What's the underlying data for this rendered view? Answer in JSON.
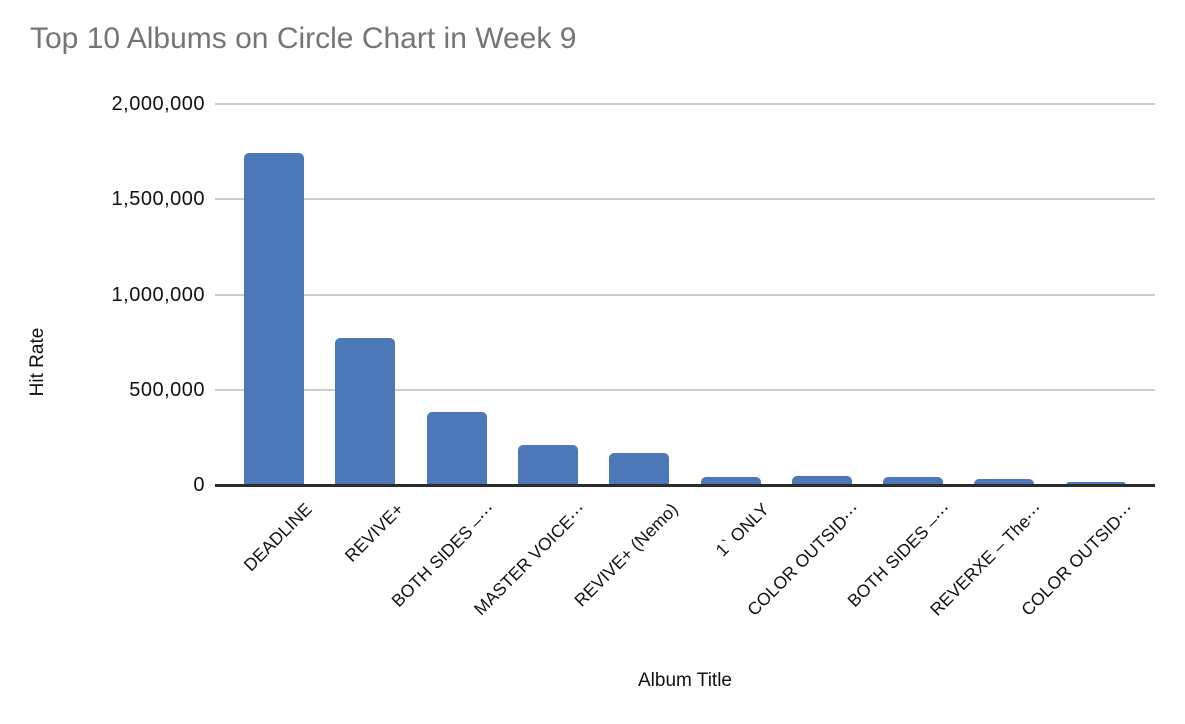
{
  "title": "Top 10 Albums on Circle Chart in Week 9",
  "chart_data": {
    "type": "bar",
    "title": "Top 10 Albums on Circle Chart in Week 9",
    "xlabel": "Album Title",
    "ylabel": "Hit Rate",
    "categories": [
      "DEADLINE",
      "REVIVE+",
      "BOTH SIDES –⋯",
      "MASTER VOICE⋯",
      "REVIVE+ (Nemo)",
      "1` ONLY",
      "COLOR OUTSID⋯",
      "BOTH SIDES –⋯",
      "REVERXE – The⋯",
      "COLOR OUTSID⋯"
    ],
    "values": [
      1745000,
      772000,
      385000,
      212000,
      166000,
      44000,
      45000,
      44000,
      30000,
      16000
    ],
    "ylim": [
      0,
      2000000
    ],
    "yticks": [
      0,
      500000,
      1000000,
      1500000,
      2000000
    ],
    "ytick_labels": [
      "0",
      "500,000",
      "1,000,000",
      "1,500,000",
      "2,000,000"
    ],
    "grid": "horizontal",
    "legend": "none",
    "colors": {
      "bar": "#4c78b8",
      "gridline": "#cccccc",
      "axis_line": "#2b2b2b",
      "title_text": "#757575",
      "tick_text": "#111111"
    }
  }
}
